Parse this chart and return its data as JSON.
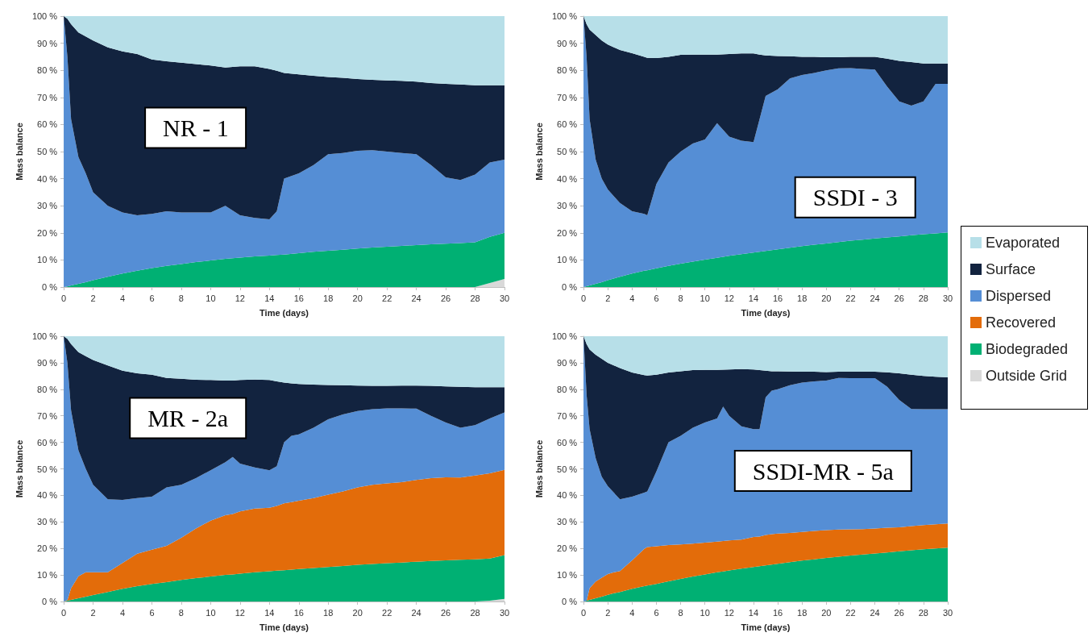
{
  "chart_data": [
    {
      "type": "area",
      "title": "NR - 1",
      "xlabel": "Time (days)",
      "ylabel": "Mass balance",
      "stacked": true,
      "xlim": [
        0,
        30
      ],
      "xticks": [
        0,
        2,
        4,
        6,
        8,
        10,
        12,
        14,
        16,
        18,
        20,
        22,
        24,
        26,
        28,
        30
      ],
      "ylim": [
        0,
        100
      ],
      "yticks": [
        {
          "value": 0,
          "label": "0 %"
        },
        {
          "value": 10,
          "label": "10 %"
        },
        {
          "value": 20,
          "label": "20 %"
        },
        {
          "value": 30,
          "label": "30 %"
        },
        {
          "value": 40,
          "label": "40 %"
        },
        {
          "value": 50,
          "label": "50 %"
        },
        {
          "value": 60,
          "label": "60 %"
        },
        {
          "value": 70,
          "label": "70 %"
        },
        {
          "value": 80,
          "label": "80 %"
        },
        {
          "value": 90,
          "label": "90 %"
        },
        {
          "value": 100,
          "label": "100 %"
        }
      ],
      "x": [
        0,
        0.25,
        0.5,
        1,
        1.5,
        2,
        3,
        4,
        5,
        6,
        7,
        8,
        9,
        10,
        11,
        12,
        13,
        14,
        14.5,
        15,
        16,
        17,
        18,
        19,
        20,
        21,
        22,
        23,
        24,
        25,
        26,
        27,
        28,
        29,
        30
      ],
      "series": [
        {
          "color": "#d9d9d9",
          "values": [
            0,
            0,
            0,
            0,
            0,
            0,
            0,
            0,
            0,
            0,
            0,
            0,
            0,
            0,
            0,
            0,
            0,
            0,
            0,
            0,
            0,
            0,
            0,
            0,
            0,
            0,
            0,
            0,
            0,
            0,
            0,
            0,
            0,
            1.5,
            3
          ]
        },
        {
          "color": "#00b073",
          "values": [
            0,
            0.2,
            0.6,
            1.2,
            1.8,
            2.5,
            3.8,
            5,
            6,
            7,
            7.8,
            8.5,
            9.2,
            9.8,
            10.4,
            10.9,
            11.3,
            11.6,
            11.8,
            12,
            12.5,
            13,
            13.4,
            13.8,
            14.2,
            14.6,
            14.9,
            15.2,
            15.5,
            15.8,
            16,
            16.2,
            16.5,
            17,
            17
          ]
        },
        {
          "color": "#558ed5",
          "values": [
            100,
            84.8,
            61.4,
            46.8,
            40.2,
            32.5,
            26.2,
            22.5,
            20.5,
            20,
            20.2,
            19,
            18.3,
            17.7,
            19.6,
            15.6,
            14.2,
            13.4,
            16.2,
            28,
            29.5,
            32,
            35.6,
            35.7,
            36.1,
            35.9,
            35.1,
            34.3,
            33.5,
            29.2,
            24.5,
            23.3,
            25,
            27.5,
            27
          ]
        },
        {
          "color": "#12233f",
          "values": [
            0,
            14,
            35,
            46,
            50.5,
            56,
            58.5,
            59.5,
            59.5,
            57,
            55.3,
            55.3,
            54.8,
            54.3,
            51,
            55,
            56,
            55.5,
            51.8,
            39,
            36.5,
            33,
            28.5,
            27.7,
            26.5,
            26,
            26.3,
            26.6,
            26.8,
            30.3,
            34.5,
            35.3,
            33,
            28.5,
            27.5
          ]
        },
        {
          "color": "#b7dfe8",
          "values": [
            0,
            1,
            3,
            6,
            7.5,
            9,
            11.5,
            13,
            14,
            16,
            16.7,
            17.2,
            17.7,
            18.2,
            19,
            18.5,
            18.5,
            19.5,
            20.2,
            21,
            21.5,
            22,
            22.5,
            22.8,
            23.2,
            23.5,
            23.7,
            23.9,
            24.2,
            24.7,
            25,
            25.2,
            25.5,
            25.5,
            25.5
          ]
        }
      ]
    },
    {
      "type": "area",
      "title": "SSDI - 3",
      "xlabel": "Time (days)",
      "ylabel": "Mass balance",
      "stacked": true,
      "xlim": [
        0,
        30
      ],
      "xticks": [
        0,
        2,
        4,
        6,
        8,
        10,
        12,
        14,
        16,
        18,
        20,
        22,
        24,
        26,
        28,
        30
      ],
      "ylim": [
        0,
        100
      ],
      "yticks": [
        {
          "value": 0,
          "label": "0 %"
        },
        {
          "value": 10,
          "label": "10 %"
        },
        {
          "value": 20,
          "label": "20 %"
        },
        {
          "value": 30,
          "label": "30 %"
        },
        {
          "value": 40,
          "label": "40 %"
        },
        {
          "value": 50,
          "label": "50 %"
        },
        {
          "value": 60,
          "label": "60 %"
        },
        {
          "value": 70,
          "label": "70 %"
        },
        {
          "value": 80,
          "label": "80 %"
        },
        {
          "value": 90,
          "label": "90 %"
        },
        {
          "value": 100,
          "label": "100 %"
        }
      ],
      "x": [
        0,
        0.25,
        0.5,
        1,
        1.5,
        2,
        3,
        4,
        5,
        5.25,
        6,
        7,
        8,
        9,
        10,
        11,
        12,
        13,
        14,
        14.5,
        15,
        16,
        17,
        18,
        19,
        20,
        21,
        22,
        23,
        24,
        25,
        26,
        27,
        28,
        29,
        30
      ],
      "series": [
        {
          "color": "#00b073",
          "values": [
            0,
            0.3,
            0.6,
            1.2,
            1.8,
            2.5,
            3.8,
            5,
            6,
            6.2,
            6.9,
            7.8,
            8.6,
            9.4,
            10.1,
            10.8,
            11.5,
            12.1,
            12.7,
            13,
            13.3,
            13.9,
            14.5,
            15.1,
            15.6,
            16.1,
            16.6,
            17.1,
            17.5,
            17.9,
            18.3,
            18.7,
            19.1,
            19.5,
            19.8,
            20.2
          ]
        },
        {
          "color": "#558ed5",
          "values": [
            100,
            84.7,
            61.4,
            45.8,
            38.2,
            33.5,
            27.2,
            23,
            21,
            20.3,
            31.1,
            38.2,
            41.4,
            43.6,
            44.4,
            49.7,
            44,
            41.9,
            40.8,
            49,
            57.2,
            59.1,
            62.5,
            63.2,
            63.4,
            63.9,
            64.1,
            63.7,
            63,
            62.4,
            55.7,
            49.8,
            47.9,
            49,
            55.2,
            54.8
          ]
        },
        {
          "color": "#12233f",
          "values": [
            0,
            12,
            33,
            46,
            51,
            53.5,
            56.5,
            58.3,
            58,
            58.1,
            46.5,
            39,
            35.7,
            32.8,
            31.3,
            25.3,
            30.5,
            32.2,
            32.7,
            23.8,
            15,
            12.3,
            8.2,
            6.7,
            6,
            4.8,
            4.1,
            4.2,
            4.5,
            4.7,
            10.3,
            15,
            16,
            14,
            7.5,
            7.5
          ]
        },
        {
          "color": "#b7dfe8",
          "values": [
            0,
            3,
            5,
            7,
            9,
            10.5,
            12.5,
            13.7,
            15,
            15.4,
            15.5,
            15,
            14.3,
            14.2,
            14.2,
            14.2,
            14,
            13.8,
            13.8,
            14.2,
            14.5,
            14.7,
            14.8,
            15,
            15,
            15.2,
            15.2,
            15,
            15,
            15,
            15.7,
            16.5,
            17,
            17.5,
            17.5,
            17.5
          ]
        }
      ]
    },
    {
      "type": "area",
      "title": "MR - 2a",
      "xlabel": "Time (days)",
      "ylabel": "Mass balance",
      "stacked": true,
      "legend": "right",
      "xlim": [
        0,
        30
      ],
      "xticks": [
        0,
        2,
        4,
        6,
        8,
        10,
        12,
        14,
        16,
        18,
        20,
        22,
        24,
        26,
        28,
        30
      ],
      "ylim": [
        0,
        100
      ],
      "yticks": [
        {
          "value": 0,
          "label": "0 %"
        },
        {
          "value": 10,
          "label": "10 %"
        },
        {
          "value": 20,
          "label": "20 %"
        },
        {
          "value": 30,
          "label": "30 %"
        },
        {
          "value": 40,
          "label": "40 %"
        },
        {
          "value": 50,
          "label": "50 %"
        },
        {
          "value": 60,
          "label": "60 %"
        },
        {
          "value": 70,
          "label": "70 %"
        },
        {
          "value": 80,
          "label": "80 %"
        },
        {
          "value": 90,
          "label": "90 %"
        },
        {
          "value": 100,
          "label": "100 %"
        }
      ],
      "x": [
        0,
        0.25,
        0.5,
        1,
        1.5,
        2,
        3,
        4,
        5,
        6,
        7,
        8,
        9,
        10,
        11,
        11.5,
        12,
        13,
        14,
        14.5,
        15,
        15.5,
        16,
        17,
        18,
        19,
        20,
        21,
        22,
        23,
        24,
        25,
        26,
        27,
        28,
        29,
        30
      ],
      "series": [
        {
          "name": "Outside Grid",
          "color": "#d9d9d9",
          "values": [
            0,
            0,
            0,
            0,
            0,
            0,
            0,
            0,
            0,
            0,
            0,
            0,
            0,
            0,
            0,
            0,
            0,
            0,
            0,
            0,
            0,
            0,
            0,
            0,
            0,
            0,
            0,
            0,
            0,
            0,
            0,
            0,
            0,
            0,
            0,
            0.3,
            1
          ]
        },
        {
          "name": "Biodegraded",
          "color": "#00b073",
          "values": [
            0,
            0.3,
            0.6,
            1.2,
            1.8,
            2.4,
            3.6,
            4.8,
            5.8,
            6.6,
            7.3,
            8.1,
            8.8,
            9.4,
            10,
            10.2,
            10.5,
            11,
            11.4,
            11.6,
            11.8,
            12,
            12.2,
            12.6,
            13,
            13.4,
            13.8,
            14.1,
            14.4,
            14.7,
            15,
            15.3,
            15.5,
            15.7,
            15.9,
            15.9,
            16.5
          ]
        },
        {
          "name": "Recovered",
          "color": "#e36c0a",
          "values": [
            0,
            0.2,
            4.4,
            8.3,
            9.2,
            8.6,
            7.4,
            9.7,
            12.2,
            12.9,
            13.7,
            15.9,
            18.7,
            21.1,
            22.5,
            22.8,
            23.5,
            24,
            23.9,
            24.4,
            25.2,
            25.5,
            25.8,
            26.4,
            27.3,
            28.1,
            29.2,
            29.9,
            30.1,
            30.3,
            30.8,
            31.2,
            31.3,
            31,
            31.6,
            32.1,
            32.1
          ]
        },
        {
          "name": "Dispersed",
          "color": "#558ed5",
          "values": [
            100,
            89.5,
            67,
            47.5,
            39,
            33,
            27.5,
            23.8,
            21,
            20,
            22,
            20,
            19,
            19,
            20,
            21.5,
            18,
            15.5,
            14.2,
            15,
            23,
            25,
            25,
            26.5,
            28.4,
            29,
            28.8,
            28.5,
            28.3,
            27.8,
            26.9,
            23.5,
            20.7,
            18.8,
            19,
            20.7,
            21.7
          ]
        },
        {
          "name": "Surface",
          "color": "#12233f",
          "values": [
            0,
            9,
            25,
            37,
            42.5,
            47,
            50.5,
            48.7,
            47,
            46,
            41.3,
            40,
            37.1,
            34,
            30.8,
            28.8,
            31.5,
            33.2,
            34,
            32,
            22.5,
            19.7,
            19,
            16.3,
            12.9,
            11,
            9.6,
            8.8,
            8.5,
            8.6,
            8.7,
            11.3,
            13.6,
            15.4,
            14.3,
            11.8,
            9.5
          ]
        },
        {
          "name": "Evaporated",
          "color": "#b7dfe8",
          "values": [
            0,
            1,
            3,
            6,
            7.5,
            9,
            11,
            13,
            14,
            14.5,
            15.7,
            16,
            16.4,
            16.5,
            16.7,
            16.7,
            16.5,
            16.3,
            16.5,
            17,
            17.5,
            17.8,
            18,
            18.2,
            18.4,
            18.5,
            18.6,
            18.7,
            18.7,
            18.6,
            18.6,
            18.7,
            18.9,
            19.1,
            19.2,
            19.2,
            19.2
          ]
        }
      ]
    },
    {
      "type": "area",
      "title": "SSDI-MR - 5a",
      "xlabel": "Time (days)",
      "ylabel": "Mass balance",
      "stacked": true,
      "xlim": [
        0,
        30
      ],
      "xticks": [
        0,
        2,
        4,
        6,
        8,
        10,
        12,
        14,
        16,
        18,
        20,
        22,
        24,
        26,
        28,
        30
      ],
      "ylim": [
        0,
        100
      ],
      "yticks": [
        {
          "value": 0,
          "label": "0 %"
        },
        {
          "value": 10,
          "label": "10 %"
        },
        {
          "value": 20,
          "label": "20 %"
        },
        {
          "value": 30,
          "label": "30 %"
        },
        {
          "value": 40,
          "label": "40 %"
        },
        {
          "value": 50,
          "label": "50 %"
        },
        {
          "value": 60,
          "label": "60 %"
        },
        {
          "value": 70,
          "label": "70 %"
        },
        {
          "value": 80,
          "label": "80 %"
        },
        {
          "value": 90,
          "label": "90 %"
        },
        {
          "value": 100,
          "label": "100 %"
        }
      ],
      "x": [
        0,
        0.25,
        0.5,
        1,
        1.5,
        2,
        2.5,
        3,
        4,
        5,
        5.25,
        6,
        7,
        8,
        9,
        10,
        11,
        11.5,
        12,
        13,
        14,
        14.5,
        15,
        15.5,
        16,
        17,
        18,
        19,
        20,
        21,
        22,
        23,
        24,
        25,
        26,
        27,
        28,
        29,
        30
      ],
      "series": [
        {
          "color": "#00b073",
          "values": [
            0,
            0.3,
            0.6,
            1.2,
            1.8,
            2.5,
            3.1,
            3.6,
            4.8,
            5.8,
            6,
            6.6,
            7.6,
            8.5,
            9.4,
            10.2,
            11,
            11.3,
            11.7,
            12.4,
            13,
            13.3,
            13.6,
            13.9,
            14.2,
            14.8,
            15.4,
            15.9,
            16.4,
            16.9,
            17.3,
            17.7,
            18.1,
            18.5,
            18.9,
            19.3,
            19.7,
            20,
            20.3
          ]
        },
        {
          "color": "#e36c0a",
          "values": [
            0,
            0,
            4.4,
            6.3,
            7.2,
            7.8,
            7.9,
            7.9,
            10.7,
            14,
            14.5,
            14.2,
            13.7,
            13,
            12.4,
            12,
            11.6,
            11.5,
            11.3,
            10.9,
            11.3,
            11.2,
            11.5,
            11.5,
            11.4,
            11,
            10.8,
            10.7,
            10.5,
            10.2,
            9.9,
            9.6,
            9.4,
            9.3,
            9.1,
            9.1,
            9.1,
            9.1,
            9.1
          ]
        },
        {
          "color": "#558ed5",
          "values": [
            100,
            77.7,
            60,
            46.5,
            38,
            33.2,
            30,
            27,
            24,
            21.2,
            21,
            28.2,
            38.7,
            41,
            43.7,
            45.3,
            46.4,
            50.7,
            47,
            42.7,
            40.7,
            40.5,
            51.9,
            54.1,
            54.4,
            55.7,
            56.3,
            56.4,
            56.4,
            57.2,
            57,
            56.9,
            56.7,
            53.2,
            48,
            44.2,
            43.7,
            43.4,
            43.1
          ]
        },
        {
          "color": "#12233f",
          "values": [
            0,
            19,
            30,
            39,
            44.5,
            46.5,
            48,
            49.5,
            46.8,
            44.3,
            43.7,
            36.5,
            26.3,
            24.3,
            21.7,
            19.8,
            18.3,
            13.9,
            17.5,
            21.6,
            22.5,
            22.2,
            10,
            7.3,
            6.8,
            5.2,
            4.1,
            3.6,
            3.2,
            2.3,
            2.4,
            2.4,
            2.4,
            5.4,
            10,
            12.9,
            12.5,
            12.2,
            12
          ]
        },
        {
          "color": "#b7dfe8",
          "values": [
            0,
            3,
            5,
            7,
            8.5,
            10,
            11,
            12,
            13.7,
            14.7,
            14.8,
            14.5,
            13.7,
            13.2,
            12.8,
            12.7,
            12.7,
            12.6,
            12.5,
            12.4,
            12.5,
            12.8,
            13,
            13.2,
            13.2,
            13.3,
            13.4,
            13.4,
            13.5,
            13.4,
            13.4,
            13.4,
            13.4,
            13.6,
            14,
            14.5,
            15,
            15.3,
            15.5
          ]
        }
      ]
    }
  ]
}
